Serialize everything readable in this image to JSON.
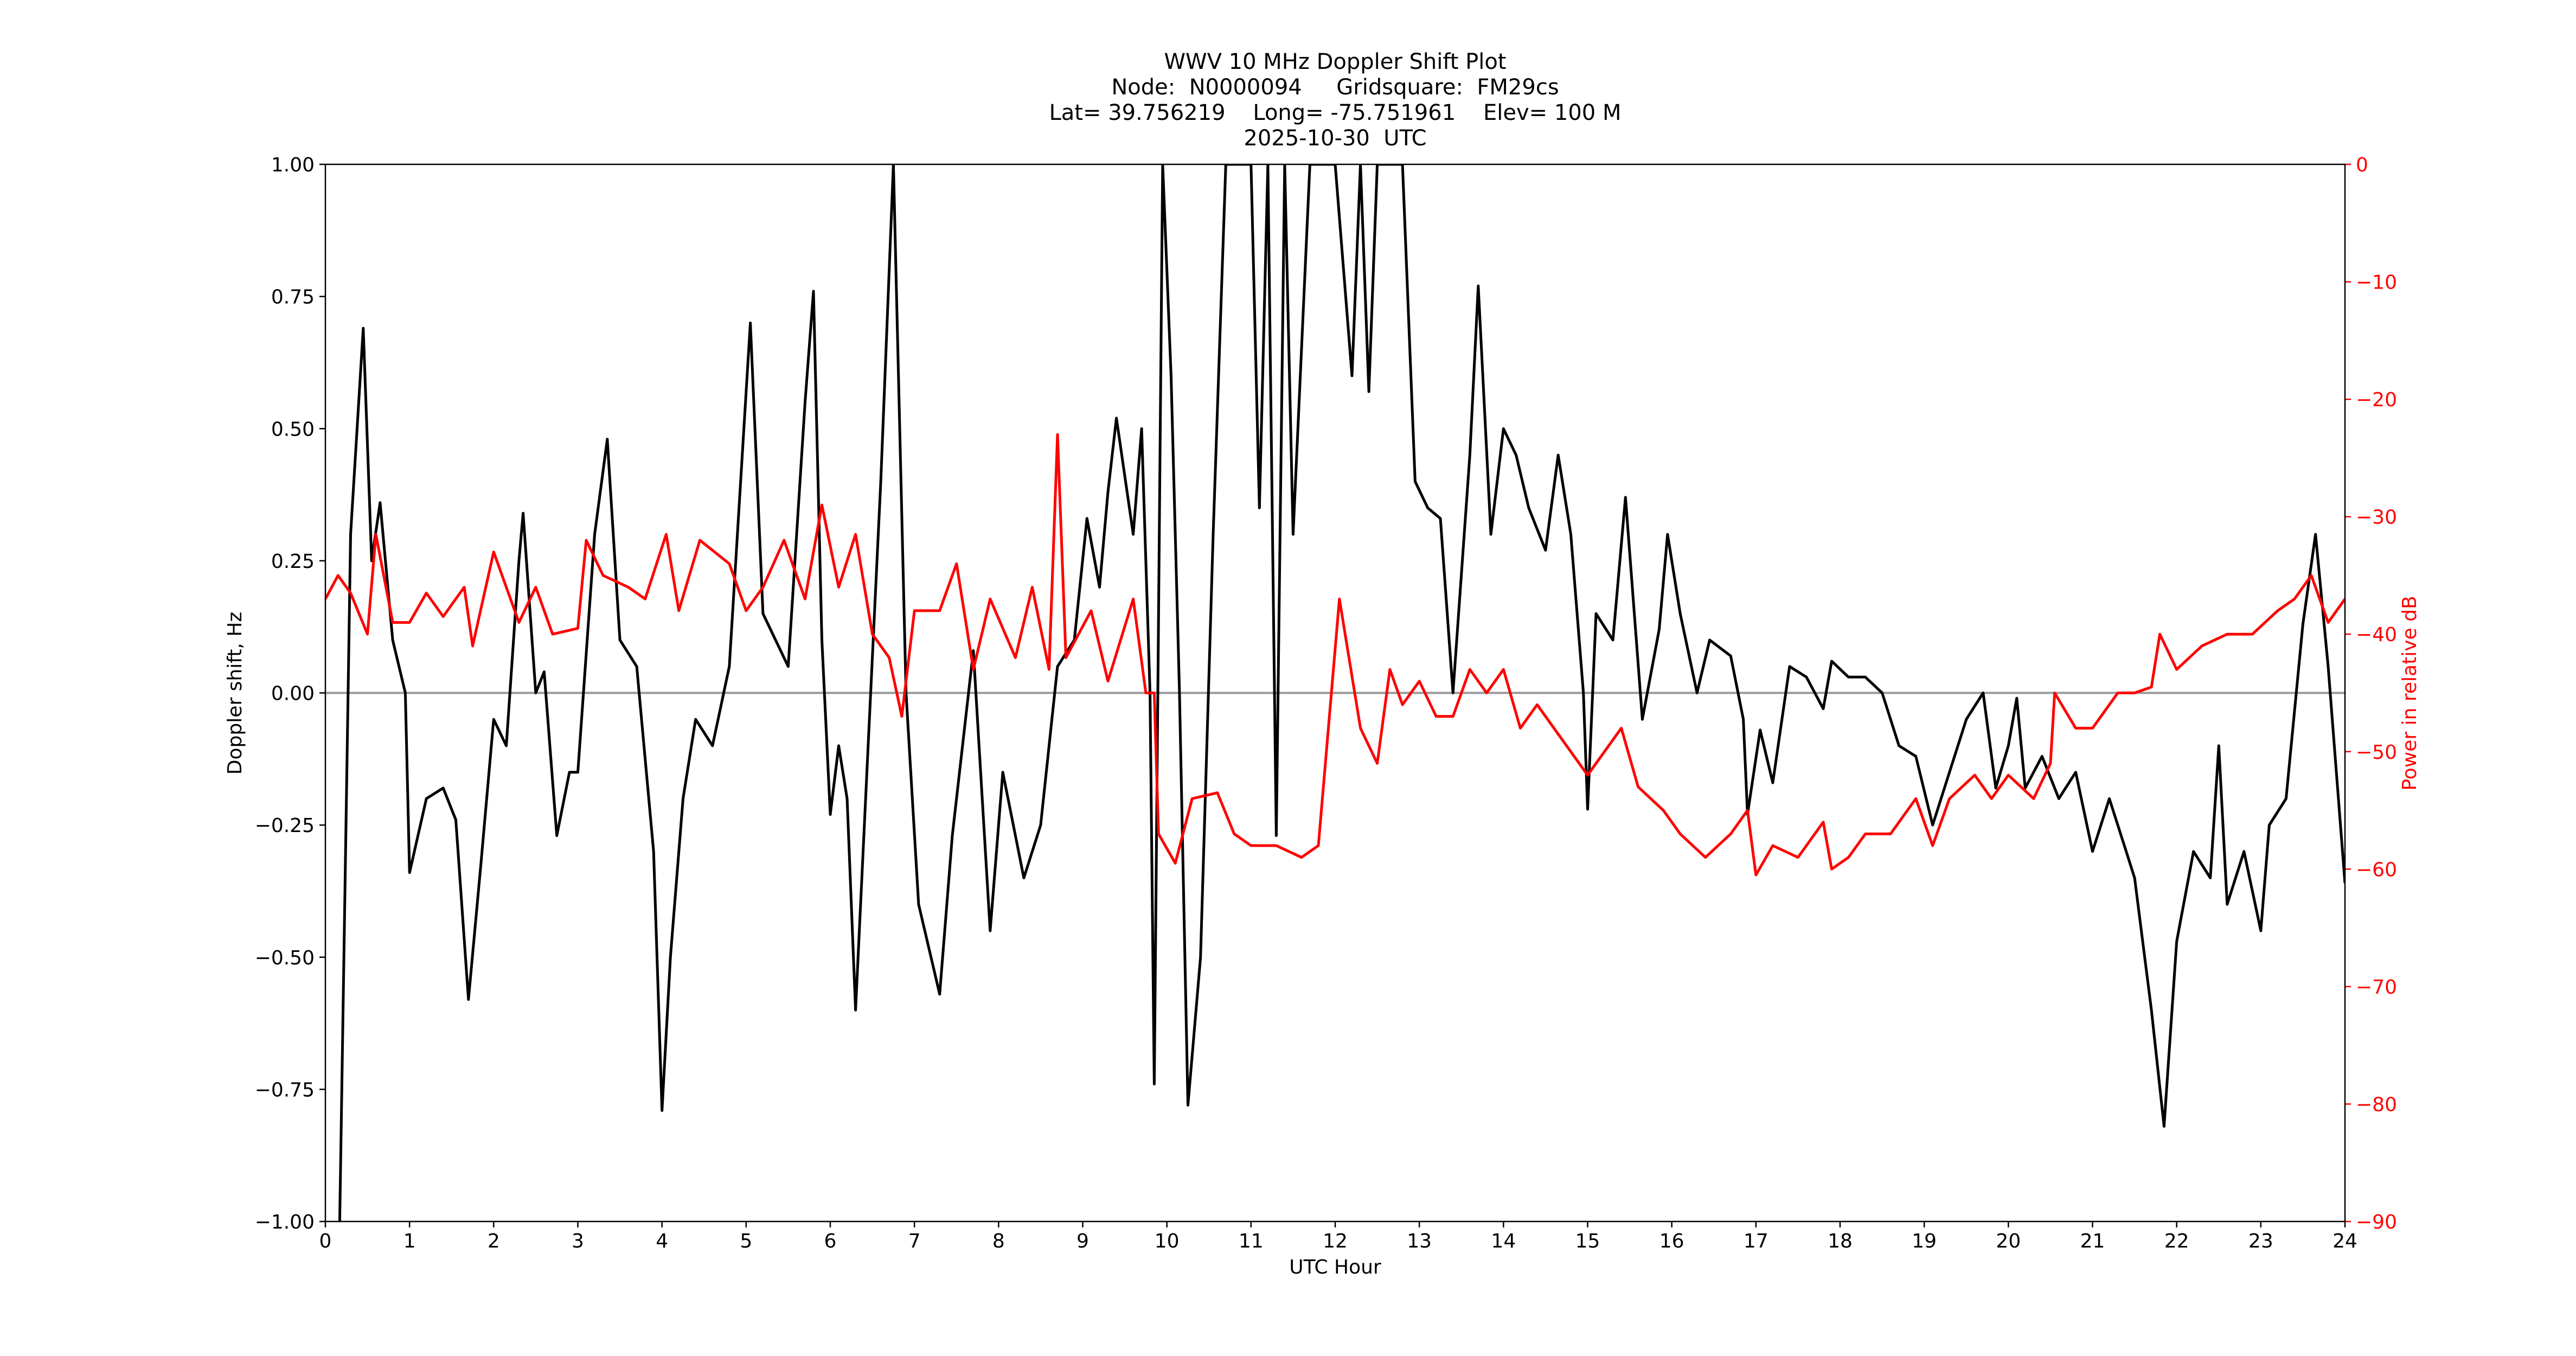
{
  "chart_data": {
    "type": "line",
    "title": "WWV 10 MHz Doppler Shift Plot",
    "subtitle": [
      "Node:  N0000094     Gridsquare:  FM29cs",
      "Lat= 39.756219    Long= -75.751961    Elev= 100 M",
      "2025-10-30  UTC"
    ],
    "x_label": "UTC Hour",
    "y_label": "Doppler shift, Hz",
    "y2_label": "Power in relative dB",
    "y2_color": "#ff0000",
    "hline": 0,
    "hline_color": "#999999",
    "xlim": [
      0,
      24
    ],
    "xticks": [
      0,
      1,
      2,
      3,
      4,
      5,
      6,
      7,
      8,
      9,
      10,
      11,
      12,
      13,
      14,
      15,
      16,
      17,
      18,
      19,
      20,
      21,
      22,
      23,
      24
    ],
    "ylim": [
      -1,
      1
    ],
    "yticks": [
      {
        "value": -1,
        "label": "−1.00"
      },
      {
        "value": -0.75,
        "label": "−0.75"
      },
      {
        "value": -0.5,
        "label": "−0.50"
      },
      {
        "value": -0.25,
        "label": "−0.25"
      },
      {
        "value": 0,
        "label": "0.00"
      },
      {
        "value": 0.25,
        "label": "0.25"
      },
      {
        "value": 0.5,
        "label": "0.50"
      },
      {
        "value": 0.75,
        "label": "0.75"
      },
      {
        "value": 1,
        "label": "1.00"
      }
    ],
    "y2lim": [
      -90,
      0
    ],
    "y2ticks": [
      {
        "value": -90,
        "label": "−90"
      },
      {
        "value": -80,
        "label": "−80"
      },
      {
        "value": -70,
        "label": "−70"
      },
      {
        "value": -60,
        "label": "−60"
      },
      {
        "value": -50,
        "label": "−50"
      },
      {
        "value": -40,
        "label": "−40"
      },
      {
        "value": -30,
        "label": "−30"
      },
      {
        "value": -20,
        "label": "−20"
      },
      {
        "value": -10,
        "label": "−10"
      },
      0
    ],
    "series": [
      {
        "color": "#000000",
        "x": [
          0.17,
          0.3,
          0.45,
          0.55,
          0.65,
          0.8,
          0.95,
          1.0,
          1.2,
          1.4,
          1.55,
          1.7,
          1.85,
          2.0,
          2.15,
          2.3,
          2.35,
          2.5,
          2.6,
          2.75,
          2.9,
          3.0,
          3.2,
          3.35,
          3.5,
          3.7,
          3.9,
          4.0,
          4.1,
          4.25,
          4.4,
          4.6,
          4.8,
          5.05,
          5.2,
          5.35,
          5.5,
          5.7,
          5.8,
          5.9,
          6.0,
          6.1,
          6.2,
          6.3,
          6.45,
          6.6,
          6.75,
          6.9,
          7.05,
          7.3,
          7.45,
          7.7,
          7.9,
          8.05,
          8.3,
          8.5,
          8.7,
          8.9,
          9.05,
          9.2,
          9.3,
          9.4,
          9.6,
          9.7,
          9.8,
          9.85,
          9.95,
          10.05,
          10.15,
          10.25,
          10.4,
          10.55,
          10.7,
          11.0,
          11.1,
          11.2,
          11.3,
          11.4,
          11.5,
          11.7,
          12.0,
          12.2,
          12.3,
          12.4,
          12.5,
          12.8,
          12.95,
          13.1,
          13.25,
          13.4,
          13.6,
          13.7,
          13.85,
          14.0,
          14.15,
          14.3,
          14.5,
          14.65,
          14.8,
          14.95,
          15.0,
          15.1,
          15.3,
          15.45,
          15.65,
          15.85,
          15.95,
          16.1,
          16.3,
          16.45,
          16.7,
          16.85,
          16.9,
          17.05,
          17.2,
          17.4,
          17.6,
          17.8,
          17.9,
          18.1,
          18.3,
          18.5,
          18.7,
          18.9,
          19.1,
          19.3,
          19.5,
          19.7,
          19.85,
          20.0,
          20.1,
          20.2,
          20.4,
          20.6,
          20.8,
          21.0,
          21.2,
          21.4,
          21.5,
          21.7,
          21.85,
          22.0,
          22.2,
          22.4,
          22.5,
          22.6,
          22.8,
          23.0,
          23.1,
          23.3,
          23.5,
          23.65,
          23.8,
          24.0
        ],
        "values": [
          -1.0,
          0.3,
          0.69,
          0.25,
          0.36,
          0.1,
          0.0,
          -0.34,
          -0.2,
          -0.18,
          -0.24,
          -0.58,
          -0.32,
          -0.05,
          -0.1,
          0.25,
          0.34,
          0.0,
          0.04,
          -0.27,
          -0.15,
          -0.15,
          0.3,
          0.48,
          0.1,
          0.05,
          -0.3,
          -0.79,
          -0.5,
          -0.2,
          -0.05,
          -0.1,
          0.05,
          0.7,
          0.15,
          0.1,
          0.05,
          0.55,
          0.76,
          0.1,
          -0.23,
          -0.1,
          -0.2,
          -0.6,
          -0.1,
          0.4,
          1.0,
          0.0,
          -0.4,
          -0.57,
          -0.27,
          0.08,
          -0.45,
          -0.15,
          -0.35,
          -0.25,
          0.05,
          0.1,
          0.33,
          0.2,
          0.38,
          0.52,
          0.3,
          0.5,
          0.0,
          -0.74,
          1.0,
          0.6,
          0.0,
          -0.78,
          -0.5,
          0.3,
          1.0,
          1.0,
          0.35,
          1.0,
          -0.27,
          1.0,
          0.3,
          1.0,
          1.0,
          0.6,
          1.0,
          0.57,
          1.0,
          1.0,
          0.4,
          0.35,
          0.33,
          0.0,
          0.45,
          0.77,
          0.3,
          0.5,
          0.45,
          0.35,
          0.27,
          0.45,
          0.3,
          0.0,
          -0.22,
          0.15,
          0.1,
          0.37,
          -0.05,
          0.12,
          0.3,
          0.15,
          0.0,
          0.1,
          0.07,
          -0.05,
          -0.23,
          -0.07,
          -0.17,
          0.05,
          0.03,
          -0.03,
          0.06,
          0.03,
          0.03,
          0.0,
          -0.1,
          -0.12,
          -0.25,
          -0.15,
          -0.05,
          0.0,
          -0.18,
          -0.1,
          -0.01,
          -0.18,
          -0.12,
          -0.2,
          -0.15,
          -0.3,
          -0.2,
          -0.3,
          -0.35,
          -0.6,
          -0.82,
          -0.47,
          -0.3,
          -0.35,
          -0.1,
          -0.4,
          -0.3,
          -0.45,
          -0.25,
          -0.2,
          0.13,
          0.3,
          0.05,
          -0.36
        ]
      },
      {
        "color": "#ff0000",
        "axis": "y2",
        "x": [
          0,
          0.15,
          0.3,
          0.5,
          0.6,
          0.8,
          1.0,
          1.2,
          1.4,
          1.65,
          1.75,
          2.0,
          2.3,
          2.5,
          2.7,
          3.0,
          3.1,
          3.3,
          3.6,
          3.8,
          4.05,
          4.2,
          4.45,
          4.8,
          5.0,
          5.2,
          5.45,
          5.7,
          5.9,
          6.1,
          6.3,
          6.5,
          6.7,
          6.85,
          7.0,
          7.3,
          7.5,
          7.7,
          7.9,
          8.2,
          8.4,
          8.6,
          8.7,
          8.8,
          9.1,
          9.3,
          9.6,
          9.75,
          9.85,
          9.9,
          10.1,
          10.3,
          10.6,
          10.8,
          11.0,
          11.3,
          11.6,
          11.8,
          12.05,
          12.3,
          12.5,
          12.65,
          12.8,
          13.0,
          13.2,
          13.4,
          13.6,
          13.8,
          14.0,
          14.2,
          14.4,
          14.6,
          14.8,
          15.0,
          15.2,
          15.4,
          15.6,
          15.9,
          16.1,
          16.4,
          16.7,
          16.9,
          17.0,
          17.2,
          17.5,
          17.8,
          17.9,
          18.1,
          18.3,
          18.6,
          18.9,
          19.1,
          19.3,
          19.6,
          19.8,
          20.0,
          20.3,
          20.5,
          20.55,
          20.8,
          21.0,
          21.3,
          21.5,
          21.7,
          21.8,
          22.0,
          22.3,
          22.6,
          22.9,
          23.2,
          23.4,
          23.6,
          23.8,
          24.0
        ],
        "values": [
          -37,
          -35,
          -36.5,
          -40,
          -31.5,
          -39,
          -39,
          -36.5,
          -38.5,
          -36,
          -41,
          -33,
          -39,
          -36,
          -40,
          -39.5,
          -32,
          -35,
          -36,
          -37,
          -31.5,
          -38,
          -32,
          -34,
          -38,
          -36,
          -32,
          -37,
          -29,
          -36,
          -31.5,
          -40,
          -42,
          -47,
          -38,
          -38,
          -34,
          -43,
          -37,
          -42,
          -36,
          -43,
          -23,
          -42,
          -38,
          -44,
          -37,
          -45,
          -45,
          -57,
          -59.5,
          -54,
          -53.5,
          -57,
          -58,
          -58,
          -59,
          -58,
          -37,
          -48,
          -51,
          -43,
          -46,
          -44,
          -47,
          -47,
          -43,
          -45,
          -43,
          -48,
          -46,
          -48,
          -50,
          -52,
          -50,
          -48,
          -53,
          -55,
          -57,
          -59,
          -57,
          -55,
          -60.5,
          -58,
          -59,
          -56,
          -60,
          -59,
          -57,
          -57,
          -54,
          -58,
          -54,
          -52,
          -54,
          -52,
          -54,
          -51,
          -45,
          -48,
          -48,
          -45,
          -45,
          -44.5,
          -40,
          -43,
          -41,
          -40,
          -40,
          -38,
          -37,
          -35,
          -39,
          -37
        ]
      }
    ]
  }
}
